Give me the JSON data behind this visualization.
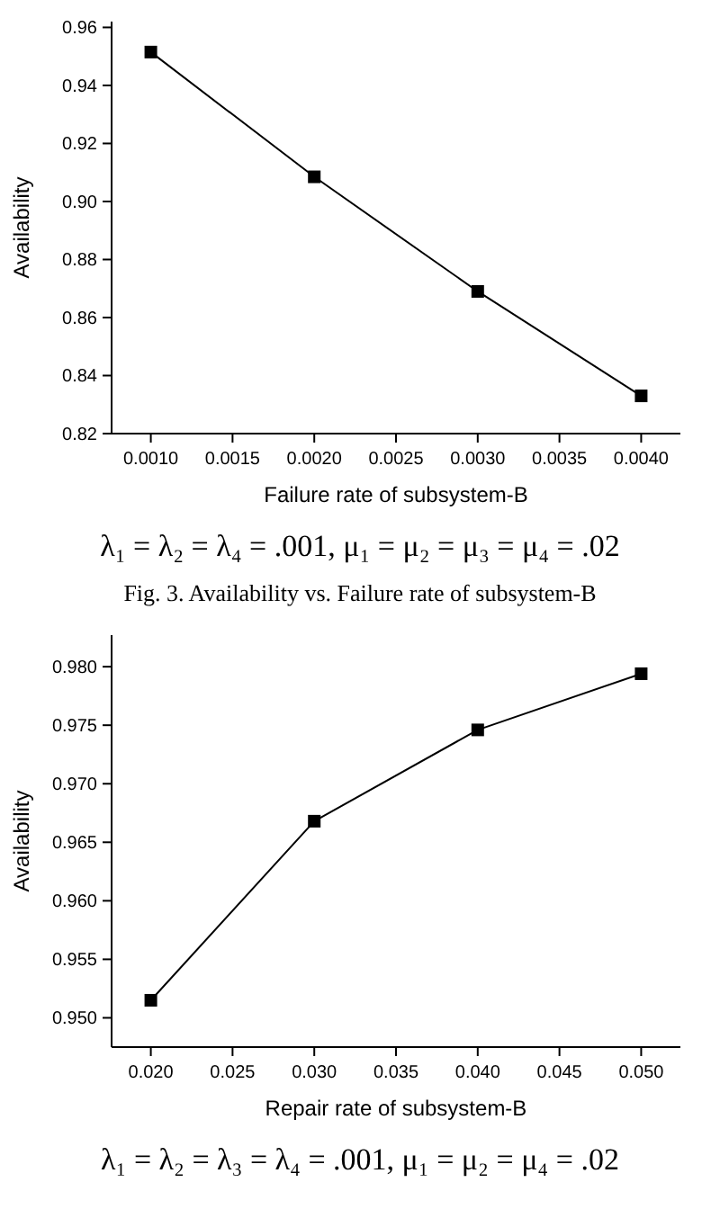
{
  "chart_data": [
    {
      "type": "line",
      "xlabel": "Failure rate of subsystem-B",
      "ylabel": "Availability",
      "x": [
        0.001,
        0.002,
        0.003,
        0.004
      ],
      "series": [
        {
          "color": "#000000",
          "values": [
            0.9515,
            0.9085,
            0.869,
            0.833
          ]
        }
      ],
      "xlim": [
        0.00076,
        0.00424
      ],
      "xticks": [
        {
          "value": 0.001,
          "label": "0.0010"
        },
        {
          "value": 0.0015,
          "label": "0.0015"
        },
        {
          "value": 0.002,
          "label": "0.0020"
        },
        {
          "value": 0.0025,
          "label": "0.0025"
        },
        {
          "value": 0.003,
          "label": "0.0030"
        },
        {
          "value": 0.0035,
          "label": "0.0035"
        },
        {
          "value": 0.004,
          "label": "0.0040"
        }
      ],
      "ylim": [
        0.82,
        0.962
      ],
      "yticks": [
        {
          "value": 0.82,
          "label": "0.82"
        },
        {
          "value": 0.84,
          "label": "0.84"
        },
        {
          "value": 0.86,
          "label": "0.86"
        },
        {
          "value": 0.88,
          "label": "0.88"
        },
        {
          "value": 0.9,
          "label": "0.90"
        },
        {
          "value": 0.92,
          "label": "0.92"
        },
        {
          "value": 0.94,
          "label": "0.94"
        },
        {
          "value": 0.96,
          "label": "0.96"
        }
      ],
      "grid": false,
      "marker": "square",
      "line_style": "solid",
      "annotations": [
        "λ₁ = λ₂ = λ₄ = .001, μ₁ = μ₂ = μ₃ = μ₄ = .02",
        "Fig. 3. Availability vs. Failure rate of subsystem-B"
      ]
    },
    {
      "type": "line",
      "xlabel": "Repair rate of subsystem-B",
      "ylabel": "Availability",
      "x": [
        0.02,
        0.03,
        0.04,
        0.05
      ],
      "series": [
        {
          "color": "#000000",
          "values": [
            0.9515,
            0.9668,
            0.9746,
            0.9794
          ]
        }
      ],
      "xlim": [
        0.0176,
        0.0524
      ],
      "xticks": [
        {
          "value": 0.02,
          "label": "0.020"
        },
        {
          "value": 0.025,
          "label": "0.025"
        },
        {
          "value": 0.03,
          "label": "0.030"
        },
        {
          "value": 0.035,
          "label": "0.035"
        },
        {
          "value": 0.04,
          "label": "0.040"
        },
        {
          "value": 0.045,
          "label": "0.045"
        },
        {
          "value": 0.05,
          "label": "0.050"
        }
      ],
      "ylim": [
        0.9475,
        0.9827
      ],
      "yticks": [
        {
          "value": 0.95,
          "label": "0.950"
        },
        {
          "value": 0.955,
          "label": "0.955"
        },
        {
          "value": 0.96,
          "label": "0.960"
        },
        {
          "value": 0.965,
          "label": "0.965"
        },
        {
          "value": 0.97,
          "label": "0.970"
        },
        {
          "value": 0.975,
          "label": "0.975"
        },
        {
          "value": 0.98,
          "label": "0.980"
        }
      ],
      "grid": false,
      "marker": "square",
      "line_style": "solid",
      "annotations": [
        "λ₁ = λ₂ = λ₃ = λ₄ = .001, μ₁ = μ₂ = μ₄ = .02"
      ]
    }
  ]
}
